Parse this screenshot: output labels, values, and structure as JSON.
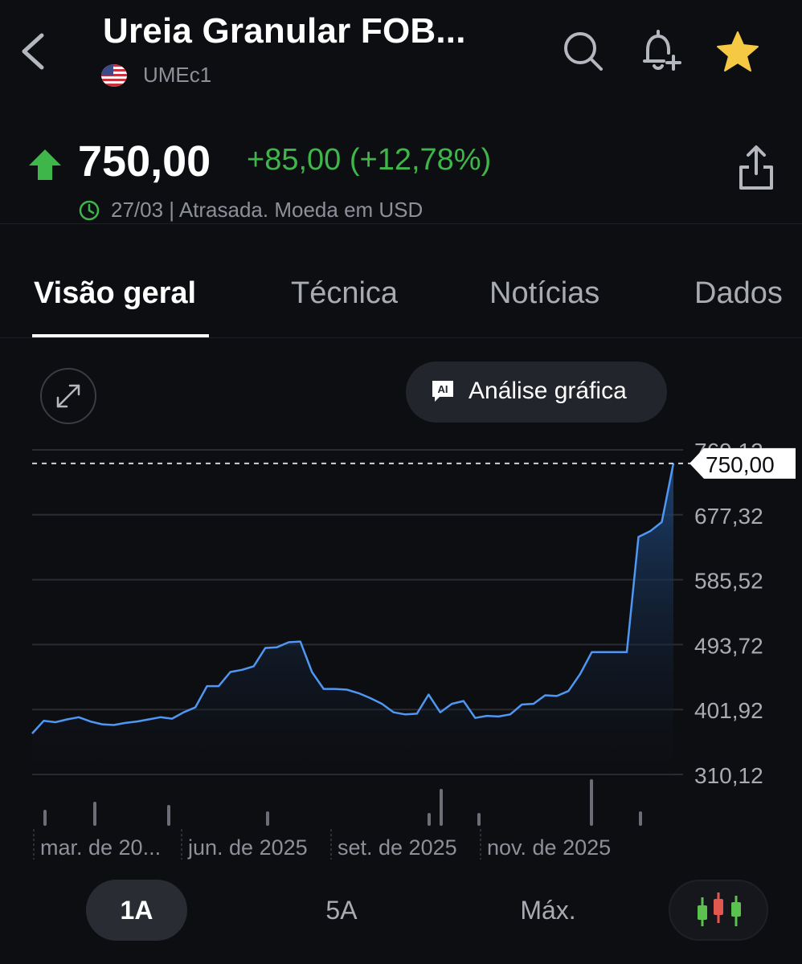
{
  "header": {
    "title": "Ureia Granular FOB...",
    "ticker": "UMEc1",
    "icons": [
      "back-icon",
      "search-icon",
      "add-alert-icon",
      "star-icon"
    ],
    "star_color": "#f6c945"
  },
  "quote": {
    "price": "750,00",
    "change": "+85,00 (+12,78%)",
    "meta": "27/03 | Atrasada. Moeda em USD",
    "up_color": "#3fb64a"
  },
  "tabs": [
    {
      "label": "Visão geral",
      "active": true
    },
    {
      "label": "Técnica",
      "active": false
    },
    {
      "label": "Notícias",
      "active": false
    },
    {
      "label": "Dados ",
      "active": false
    }
  ],
  "chart_controls": {
    "analysis_label": "Análise gráfica",
    "analysis_icon_text": "AI"
  },
  "chart_data": {
    "type": "area",
    "y_ticks": [
      "769,12",
      "677,32",
      "585,52",
      "493,72",
      "401,92",
      "310,12"
    ],
    "y_tick_values": [
      769.12,
      677.32,
      585.52,
      493.72,
      401.92,
      310.12
    ],
    "ylim": [
      310.12,
      769.12
    ],
    "x_labels": [
      "mar. de 20...",
      "jun. de 2025",
      "set. de 2025",
      "nov. de 2025"
    ],
    "last_value_label": "750,00",
    "last_value": 750,
    "line_color": "#4f97f2",
    "grid": true,
    "values": [
      368,
      386,
      384,
      388,
      391,
      385,
      381,
      380,
      383,
      385,
      388,
      391,
      389,
      398,
      405,
      435,
      435,
      455,
      458,
      463,
      489,
      490,
      497,
      498,
      455,
      431,
      431,
      430,
      425,
      418,
      410,
      398,
      395,
      396,
      423,
      398,
      410,
      414,
      390,
      393,
      392,
      395,
      409,
      410,
      422,
      421,
      428,
      452,
      483,
      483,
      483,
      483,
      646,
      654,
      667,
      750
    ]
  },
  "ranges": [
    {
      "label": "1A",
      "active": true
    },
    {
      "label": "5A",
      "active": false
    },
    {
      "label": "Máx.",
      "active": false
    }
  ]
}
